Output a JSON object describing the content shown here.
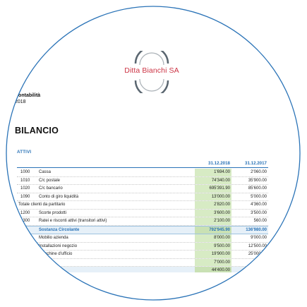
{
  "company": {
    "name": "Ditta Bianchi SA"
  },
  "meta": {
    "label": "Contabilità",
    "year": "2018"
  },
  "title": "BILANCIO",
  "section": "ATTIVI",
  "table": {
    "col1": "31.12.2018",
    "col2": "31.12.2017",
    "rows": [
      {
        "code": "1000",
        "desc": "Cassa",
        "v1": "1'694.00",
        "v2": "2'060.00"
      },
      {
        "code": "1010",
        "desc": "C/c postale",
        "v1": "74'340.00",
        "v2": "35'900.00"
      },
      {
        "code": "1020",
        "desc": "C/c bancario",
        "v1": "695'391.90",
        "v2": "85'600.00"
      },
      {
        "code": "1090",
        "desc": "Conto di giro liquidità",
        "v1": "13'000.00",
        "v2": "5'000.00"
      },
      {
        "code": "",
        "desc": "Totale clienti da partitario",
        "v1": "2'820.00",
        "v2": "4'360.00"
      },
      {
        "code": "1200",
        "desc": "Scorte prodotti",
        "v1": "3'600.00",
        "v2": "3'500.00"
      },
      {
        "code": "1300",
        "desc": "Ratei e risconti attivi (transitori attivi)",
        "v1": "2'100.00",
        "v2": "560.00"
      },
      {
        "code": "",
        "desc": "Sostanza Circolante",
        "v1": "792'945.90",
        "v2": "136'980.00",
        "total": true
      },
      {
        "code": "1500",
        "desc": "Mobilio azienda",
        "v1": "8'000.00",
        "v2": "9'000.00"
      },
      {
        "code": "1510",
        "desc": "Installazioni negozio",
        "v1": "9'500.00",
        "v2": "12'500.00"
      },
      {
        "code": "1520",
        "desc": "Macchine d'ufficio",
        "v1": "19'900.00",
        "v2": "25'000.00"
      },
      {
        "code": "",
        "desc": "",
        "v1": "7'000.00",
        "v2": ""
      },
      {
        "code": "",
        "desc": "",
        "v1": "44'400.00",
        "v2": "",
        "total": true
      }
    ]
  },
  "colors": {
    "accent": "#2a73b7",
    "brand": "#cc3344",
    "highlight": "#d7ebc4"
  }
}
